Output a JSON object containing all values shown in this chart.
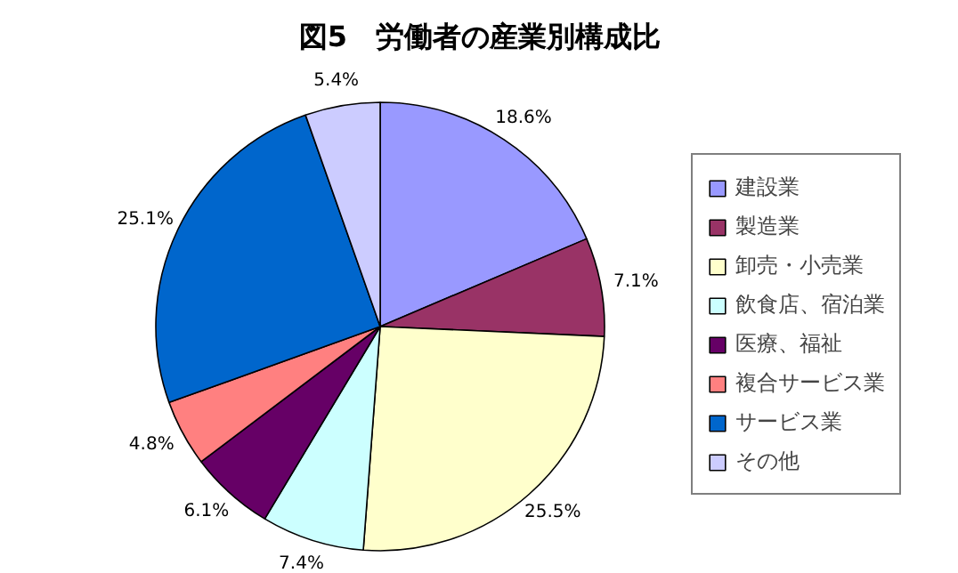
{
  "chart_data": {
    "type": "pie",
    "title": "図5　労働者の産業別構成比",
    "categories": [
      "建設業",
      "製造業",
      "卸売・小売業",
      "飲食店、宿泊業",
      "医療、福祉",
      "複合サービス業",
      "サービス業",
      "その他"
    ],
    "values": [
      18.6,
      7.1,
      25.5,
      7.4,
      6.1,
      4.8,
      25.1,
      5.4
    ],
    "value_labels": [
      "18.6%",
      "7.1%",
      "25.5%",
      "7.4%",
      "6.1%",
      "4.8%",
      "25.1%",
      "5.4%"
    ],
    "colors": [
      "#9999ff",
      "#993366",
      "#ffffcc",
      "#ccffff",
      "#660066",
      "#ff8080",
      "#0066cc",
      "#ccccff"
    ],
    "legend": "right"
  }
}
